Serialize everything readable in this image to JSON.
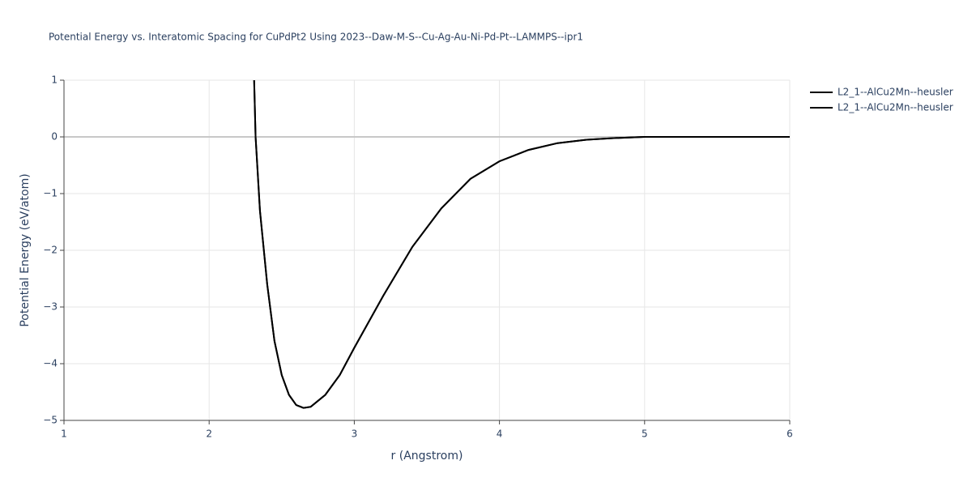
{
  "chart_data": {
    "type": "line",
    "title": "Potential Energy vs. Interatomic Spacing for CuPdPt2 Using 2023--Daw-M-S--Cu-Ag-Au-Ni-Pd-Pt--LAMMPS--ipr1",
    "x_label": "r (Angstrom)",
    "y_label": "Potential Energy (eV/atom)",
    "x": [
      2.31,
      2.32,
      2.35,
      2.4,
      2.45,
      2.5,
      2.55,
      2.6,
      2.65,
      2.7,
      2.8,
      2.9,
      3.0,
      3.2,
      3.4,
      3.6,
      3.8,
      4.0,
      4.2,
      4.4,
      4.6,
      4.8,
      5.0,
      5.5,
      6.0
    ],
    "series": [
      {
        "name": "L2_1--AlCu2Mn--heusler",
        "color": "#000000",
        "values": [
          1.0,
          0.0,
          -1.3,
          -2.6,
          -3.6,
          -4.2,
          -4.55,
          -4.73,
          -4.78,
          -4.76,
          -4.55,
          -4.2,
          -3.72,
          -2.8,
          -1.94,
          -1.26,
          -0.74,
          -0.43,
          -0.23,
          -0.11,
          -0.05,
          -0.02,
          0.0,
          0.0,
          0.0
        ]
      },
      {
        "name": "L2_1--AlCu2Mn--heusler",
        "color": "#000000",
        "values": [
          1.0,
          0.0,
          -1.3,
          -2.6,
          -3.6,
          -4.2,
          -4.55,
          -4.73,
          -4.78,
          -4.76,
          -4.55,
          -4.2,
          -3.72,
          -2.8,
          -1.94,
          -1.26,
          -0.74,
          -0.43,
          -0.23,
          -0.11,
          -0.05,
          -0.02,
          0.0,
          0.0,
          0.0
        ]
      }
    ],
    "xlim": [
      1,
      6
    ],
    "xticks": [
      1,
      2,
      3,
      4,
      5,
      6
    ],
    "ylim": [
      -5,
      1
    ],
    "yticks": [
      {
        "value": -5,
        "label": "−5"
      },
      {
        "value": -4,
        "label": "−4"
      },
      {
        "value": -3,
        "label": "−3"
      },
      {
        "value": -2,
        "label": "−2"
      },
      {
        "value": -1,
        "label": "−1"
      },
      0,
      1
    ],
    "grid": true
  }
}
